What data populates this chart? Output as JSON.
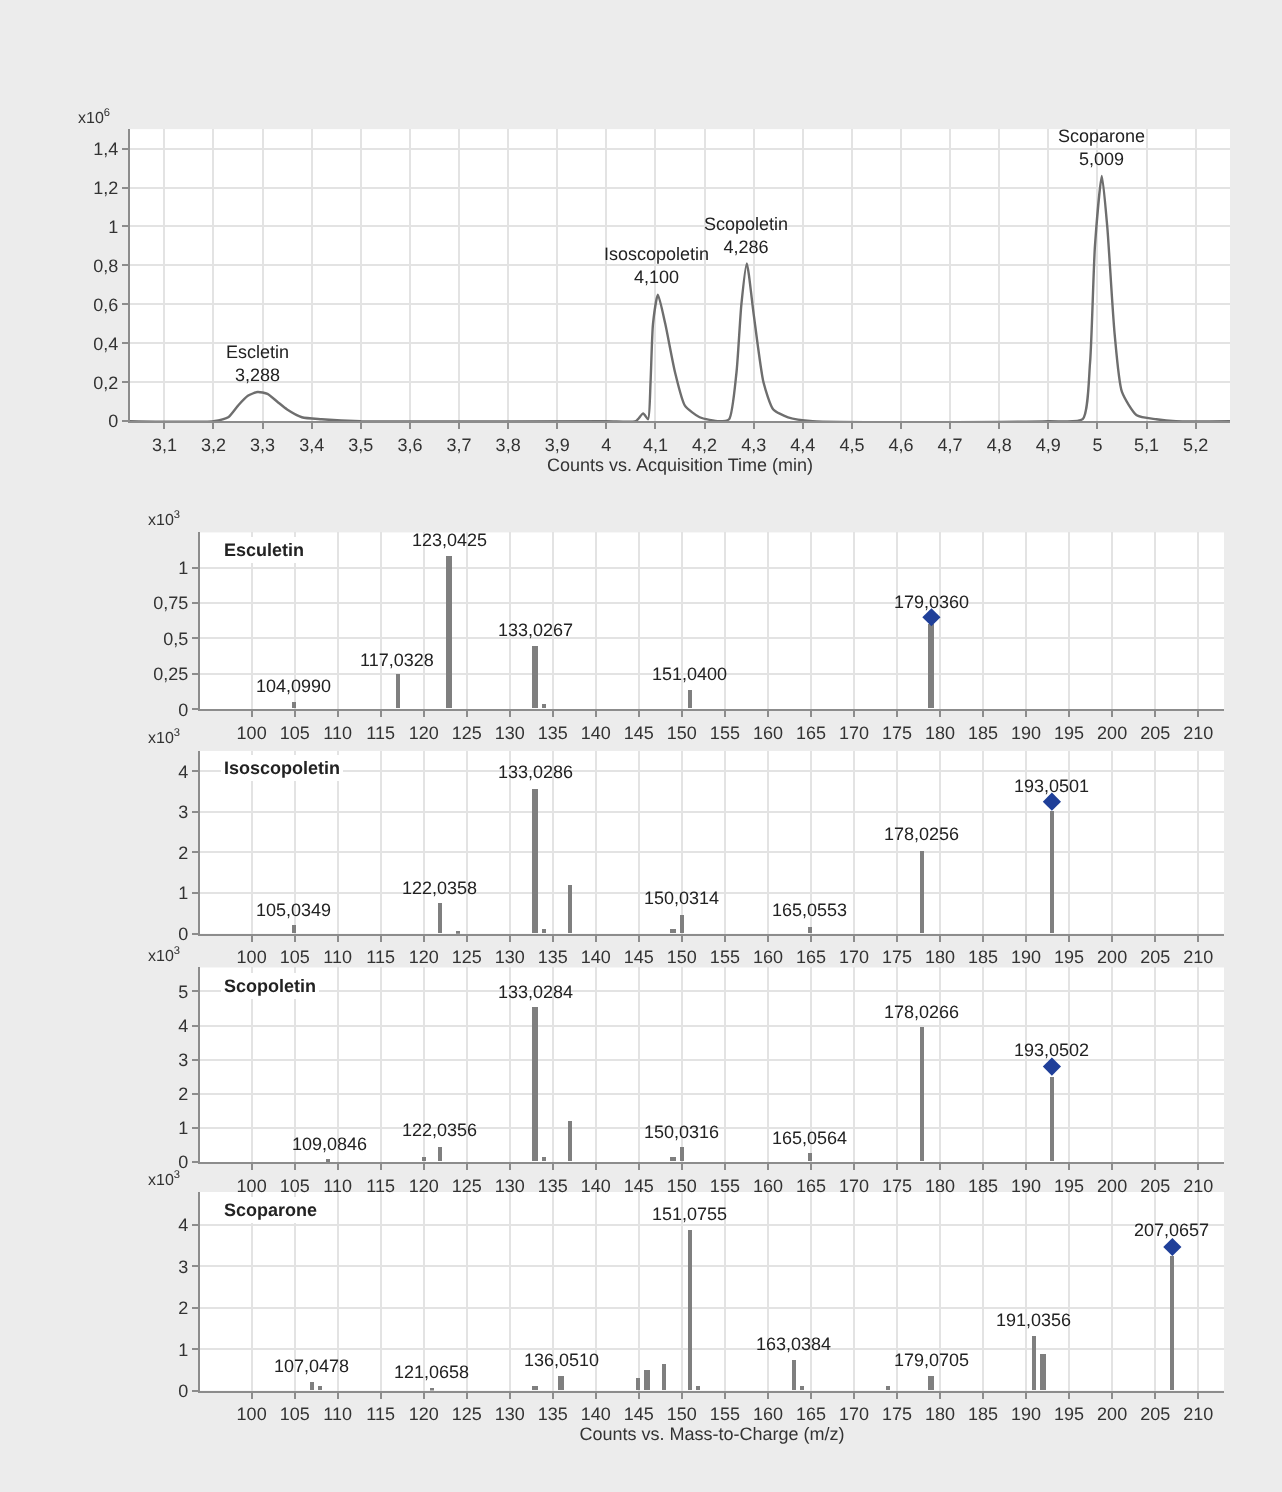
{
  "chart_data": [
    {
      "type": "line",
      "xlabel": "Counts vs. Acquisition Time (min)",
      "ylabel": "x10$^{6}$",
      "grid": true,
      "series": [
        {
          "color": "#6e6e6e",
          "x": [
            3.03,
            3.2,
            3.23,
            3.25,
            3.27,
            3.29,
            3.31,
            3.33,
            3.35,
            3.38,
            3.42,
            3.5,
            4.0,
            4.06,
            4.075,
            4.085,
            4.09,
            4.095,
            4.105,
            4.12,
            4.14,
            4.16,
            4.19,
            4.23,
            4.25,
            4.265,
            4.275,
            4.286,
            4.3,
            4.32,
            4.34,
            4.37,
            4.42,
            4.9,
            4.97,
            4.985,
            4.995,
            5.009,
            5.02,
            5.035,
            5.05,
            5.08,
            5.12,
            5.16,
            5.27
          ],
          "values": [
            0,
            0,
            0.02,
            0.08,
            0.13,
            0.15,
            0.14,
            0.1,
            0.06,
            0.02,
            0.01,
            0,
            0,
            0,
            0.04,
            0.01,
            0.2,
            0.5,
            0.65,
            0.5,
            0.25,
            0.08,
            0.02,
            0,
            0.01,
            0.25,
            0.6,
            0.81,
            0.55,
            0.2,
            0.06,
            0.02,
            0,
            0,
            0.01,
            0.3,
            0.9,
            1.26,
            1.0,
            0.45,
            0.15,
            0.03,
            0.01,
            0,
            0
          ]
        }
      ],
      "xlim": [
        3.03,
        5.27
      ],
      "ylim": [
        0,
        1.5
      ],
      "xticks": [
        {
          "value": 3.1,
          "label": "3,1"
        },
        {
          "value": 3.2,
          "label": "3,2"
        },
        {
          "value": 3.3,
          "label": "3,3"
        },
        {
          "value": 3.4,
          "label": "3,4"
        },
        {
          "value": 3.5,
          "label": "3,5"
        },
        {
          "value": 3.6,
          "label": "3,6"
        },
        {
          "value": 3.7,
          "label": "3,7"
        },
        {
          "value": 3.8,
          "label": "3,8"
        },
        {
          "value": 3.9,
          "label": "3,9"
        },
        4,
        {
          "value": 4.1,
          "label": "4,1"
        },
        {
          "value": 4.2,
          "label": "4,2"
        },
        {
          "value": 4.3,
          "label": "4,3"
        },
        {
          "value": 4.4,
          "label": "4,4"
        },
        {
          "value": 4.5,
          "label": "4,5"
        },
        {
          "value": 4.6,
          "label": "4,6"
        },
        {
          "value": 4.7,
          "label": "4,7"
        },
        {
          "value": 4.8,
          "label": "4,8"
        },
        {
          "value": 4.9,
          "label": "4,9"
        },
        5,
        {
          "value": 5.1,
          "label": "5,1"
        },
        {
          "value": 5.2,
          "label": "5,2"
        }
      ],
      "yticks": [
        0,
        {
          "value": 0.2,
          "label": "0,2"
        },
        {
          "value": 0.4,
          "label": "0,4"
        },
        {
          "value": 0.6,
          "label": "0,6"
        },
        {
          "value": 0.8,
          "label": "0,8"
        },
        1,
        {
          "value": 1.2,
          "label": "1,2"
        },
        {
          "value": 1.4,
          "label": "1,4"
        }
      ],
      "annotations": [
        {
          "text": "Escletin\n3,288",
          "x": 3.29,
          "y": 0.15
        },
        {
          "text": "Isoscopoletin\n4,100",
          "x": 4.105,
          "y": 0.65
        },
        {
          "text": "Scopoletin\n4,286",
          "x": 4.286,
          "y": 0.81
        },
        {
          "text": "Scoparone\n5,009",
          "x": 5.009,
          "y": 1.26
        }
      ]
    },
    {
      "type": "bar",
      "title": "Esculetin",
      "ylabel": "x10$^{3}$",
      "grid": true,
      "series": [
        {
          "color": "#7f7f7f",
          "x": [
            105,
            117,
            123,
            133,
            134,
            151,
            179
          ],
          "values": [
            0.05,
            0.24,
            1.08,
            0.45,
            0.03,
            0.13,
            0.6
          ]
        },
        {
          "type": "scatter",
          "marker": "diamond",
          "color": "#1f3f99",
          "x": [
            179
          ],
          "values": [
            0.65
          ]
        }
      ],
      "xlim": [
        94,
        213
      ],
      "ylim": [
        0,
        1.25
      ],
      "xticks": [
        100,
        105,
        110,
        115,
        120,
        125,
        130,
        135,
        140,
        145,
        150,
        155,
        160,
        165,
        170,
        175,
        180,
        185,
        190,
        195,
        200,
        205,
        210
      ],
      "yticks": [
        0,
        {
          "value": 0.25,
          "label": "0,25"
        },
        {
          "value": 0.5,
          "label": "0,5"
        },
        {
          "value": 0.75,
          "label": "0,75"
        },
        1
      ],
      "annotations": [
        {
          "text": "104,0990",
          "x": 105,
          "y": 0.05
        },
        {
          "text": "117,0328",
          "x": 117,
          "y": 0.24
        },
        {
          "text": "123,0425",
          "x": 123,
          "y": 1.08
        },
        {
          "text": "133,0267",
          "x": 133,
          "y": 0.45
        },
        {
          "text": "151,0400",
          "x": 151,
          "y": 0.13
        },
        {
          "text": "179,0360",
          "x": 179,
          "y": 0.65
        }
      ]
    },
    {
      "type": "bar",
      "title": "Isoscopoletin",
      "ylabel": "x10$^{3}$",
      "grid": true,
      "series": [
        {
          "color": "#7f7f7f",
          "x": [
            105,
            122,
            124,
            133,
            134,
            137,
            149,
            150,
            165,
            178,
            193
          ],
          "values": [
            0.2,
            0.75,
            0.05,
            3.58,
            0.1,
            1.22,
            0.13,
            0.47,
            0.19,
            2.04,
            3.0
          ]
        },
        {
          "type": "scatter",
          "marker": "diamond",
          "color": "#1f3f99",
          "x": [
            193
          ],
          "values": [
            3.25
          ]
        }
      ],
      "xlim": [
        94,
        213
      ],
      "ylim": [
        0,
        4.5
      ],
      "xticks": [
        100,
        105,
        110,
        115,
        120,
        125,
        130,
        135,
        140,
        145,
        150,
        155,
        160,
        165,
        170,
        175,
        180,
        185,
        190,
        195,
        200,
        205,
        210
      ],
      "yticks": [
        0,
        1,
        2,
        3,
        4
      ],
      "annotations": [
        {
          "text": "105,0349",
          "x": 105,
          "y": 0.2
        },
        {
          "text": "122,0358",
          "x": 122,
          "y": 0.75
        },
        {
          "text": "133,0286",
          "x": 133,
          "y": 3.58
        },
        {
          "text": "150,0314",
          "x": 150,
          "y": 0.47
        },
        {
          "text": "165,0553",
          "x": 165,
          "y": 0.19
        },
        {
          "text": "178,0256",
          "x": 178,
          "y": 2.04
        },
        {
          "text": "193,0501",
          "x": 193,
          "y": 3.25
        }
      ]
    },
    {
      "type": "bar",
      "title": "Scopoletin",
      "ylabel": "x10$^{3}$",
      "grid": true,
      "series": [
        {
          "color": "#7f7f7f",
          "x": [
            109,
            120,
            122,
            133,
            134,
            137,
            149,
            150,
            165,
            178,
            193
          ],
          "values": [
            0.05,
            0.13,
            0.45,
            4.5,
            0.15,
            1.2,
            0.15,
            0.42,
            0.25,
            3.95,
            2.5
          ]
        },
        {
          "type": "scatter",
          "marker": "diamond",
          "color": "#1f3f99",
          "x": [
            193
          ],
          "values": [
            2.8
          ]
        }
      ],
      "xlim": [
        94,
        213
      ],
      "ylim": [
        0,
        5.7
      ],
      "xticks": [
        100,
        105,
        110,
        115,
        120,
        125,
        130,
        135,
        140,
        145,
        150,
        155,
        160,
        165,
        170,
        175,
        180,
        185,
        190,
        195,
        200,
        205,
        210
      ],
      "yticks": [
        0,
        1,
        2,
        3,
        4,
        5
      ],
      "annotations": [
        {
          "text": "109,0846",
          "x": 109,
          "y": 0.05
        },
        {
          "text": "122,0356",
          "x": 122,
          "y": 0.45
        },
        {
          "text": "133,0284",
          "x": 133,
          "y": 4.5
        },
        {
          "text": "150,0316",
          "x": 150,
          "y": 0.42
        },
        {
          "text": "165,0564",
          "x": 165,
          "y": 0.25
        },
        {
          "text": "178,0266",
          "x": 178,
          "y": 3.95
        },
        {
          "text": "193,0502",
          "x": 193,
          "y": 2.8
        }
      ]
    },
    {
      "type": "bar",
      "title": "Scoparone",
      "ylabel": "x10$^{3}$",
      "xlabel": "Counts vs. Mass-to-Charge (m/z)",
      "grid": true,
      "series": [
        {
          "color": "#7f7f7f",
          "x": [
            107,
            108,
            121,
            133,
            136,
            145,
            146,
            148,
            151,
            152,
            163,
            164,
            174,
            179,
            191,
            192,
            207
          ],
          "values": [
            0.2,
            0.12,
            0.08,
            0.1,
            0.35,
            0.33,
            0.5,
            0.63,
            3.9,
            0.1,
            0.75,
            0.1,
            0.12,
            0.35,
            1.3,
            0.88,
            3.25
          ]
        },
        {
          "type": "scatter",
          "marker": "diamond",
          "color": "#1f3f99",
          "x": [
            207
          ],
          "values": [
            3.47
          ]
        }
      ],
      "xlim": [
        94,
        213
      ],
      "ylim": [
        0,
        4.8
      ],
      "xticks": [
        100,
        105,
        110,
        115,
        120,
        125,
        130,
        135,
        140,
        145,
        150,
        155,
        160,
        165,
        170,
        175,
        180,
        185,
        190,
        195,
        200,
        205,
        210
      ],
      "yticks": [
        0,
        1,
        2,
        3,
        4
      ],
      "annotations": [
        {
          "text": "107,0478",
          "x": 107,
          "y": 0.2
        },
        {
          "text": "121,0658",
          "x": 121,
          "y": 0.08
        },
        {
          "text": "136,0510",
          "x": 136,
          "y": 0.35
        },
        {
          "text": "151,0755",
          "x": 151,
          "y": 3.9
        },
        {
          "text": "163,0384",
          "x": 163,
          "y": 0.75
        },
        {
          "text": "179,0705",
          "x": 179,
          "y": 0.35
        },
        {
          "text": "191,0356",
          "x": 191,
          "y": 1.3
        },
        {
          "text": "207,0657",
          "x": 207,
          "y": 3.47
        }
      ]
    }
  ]
}
